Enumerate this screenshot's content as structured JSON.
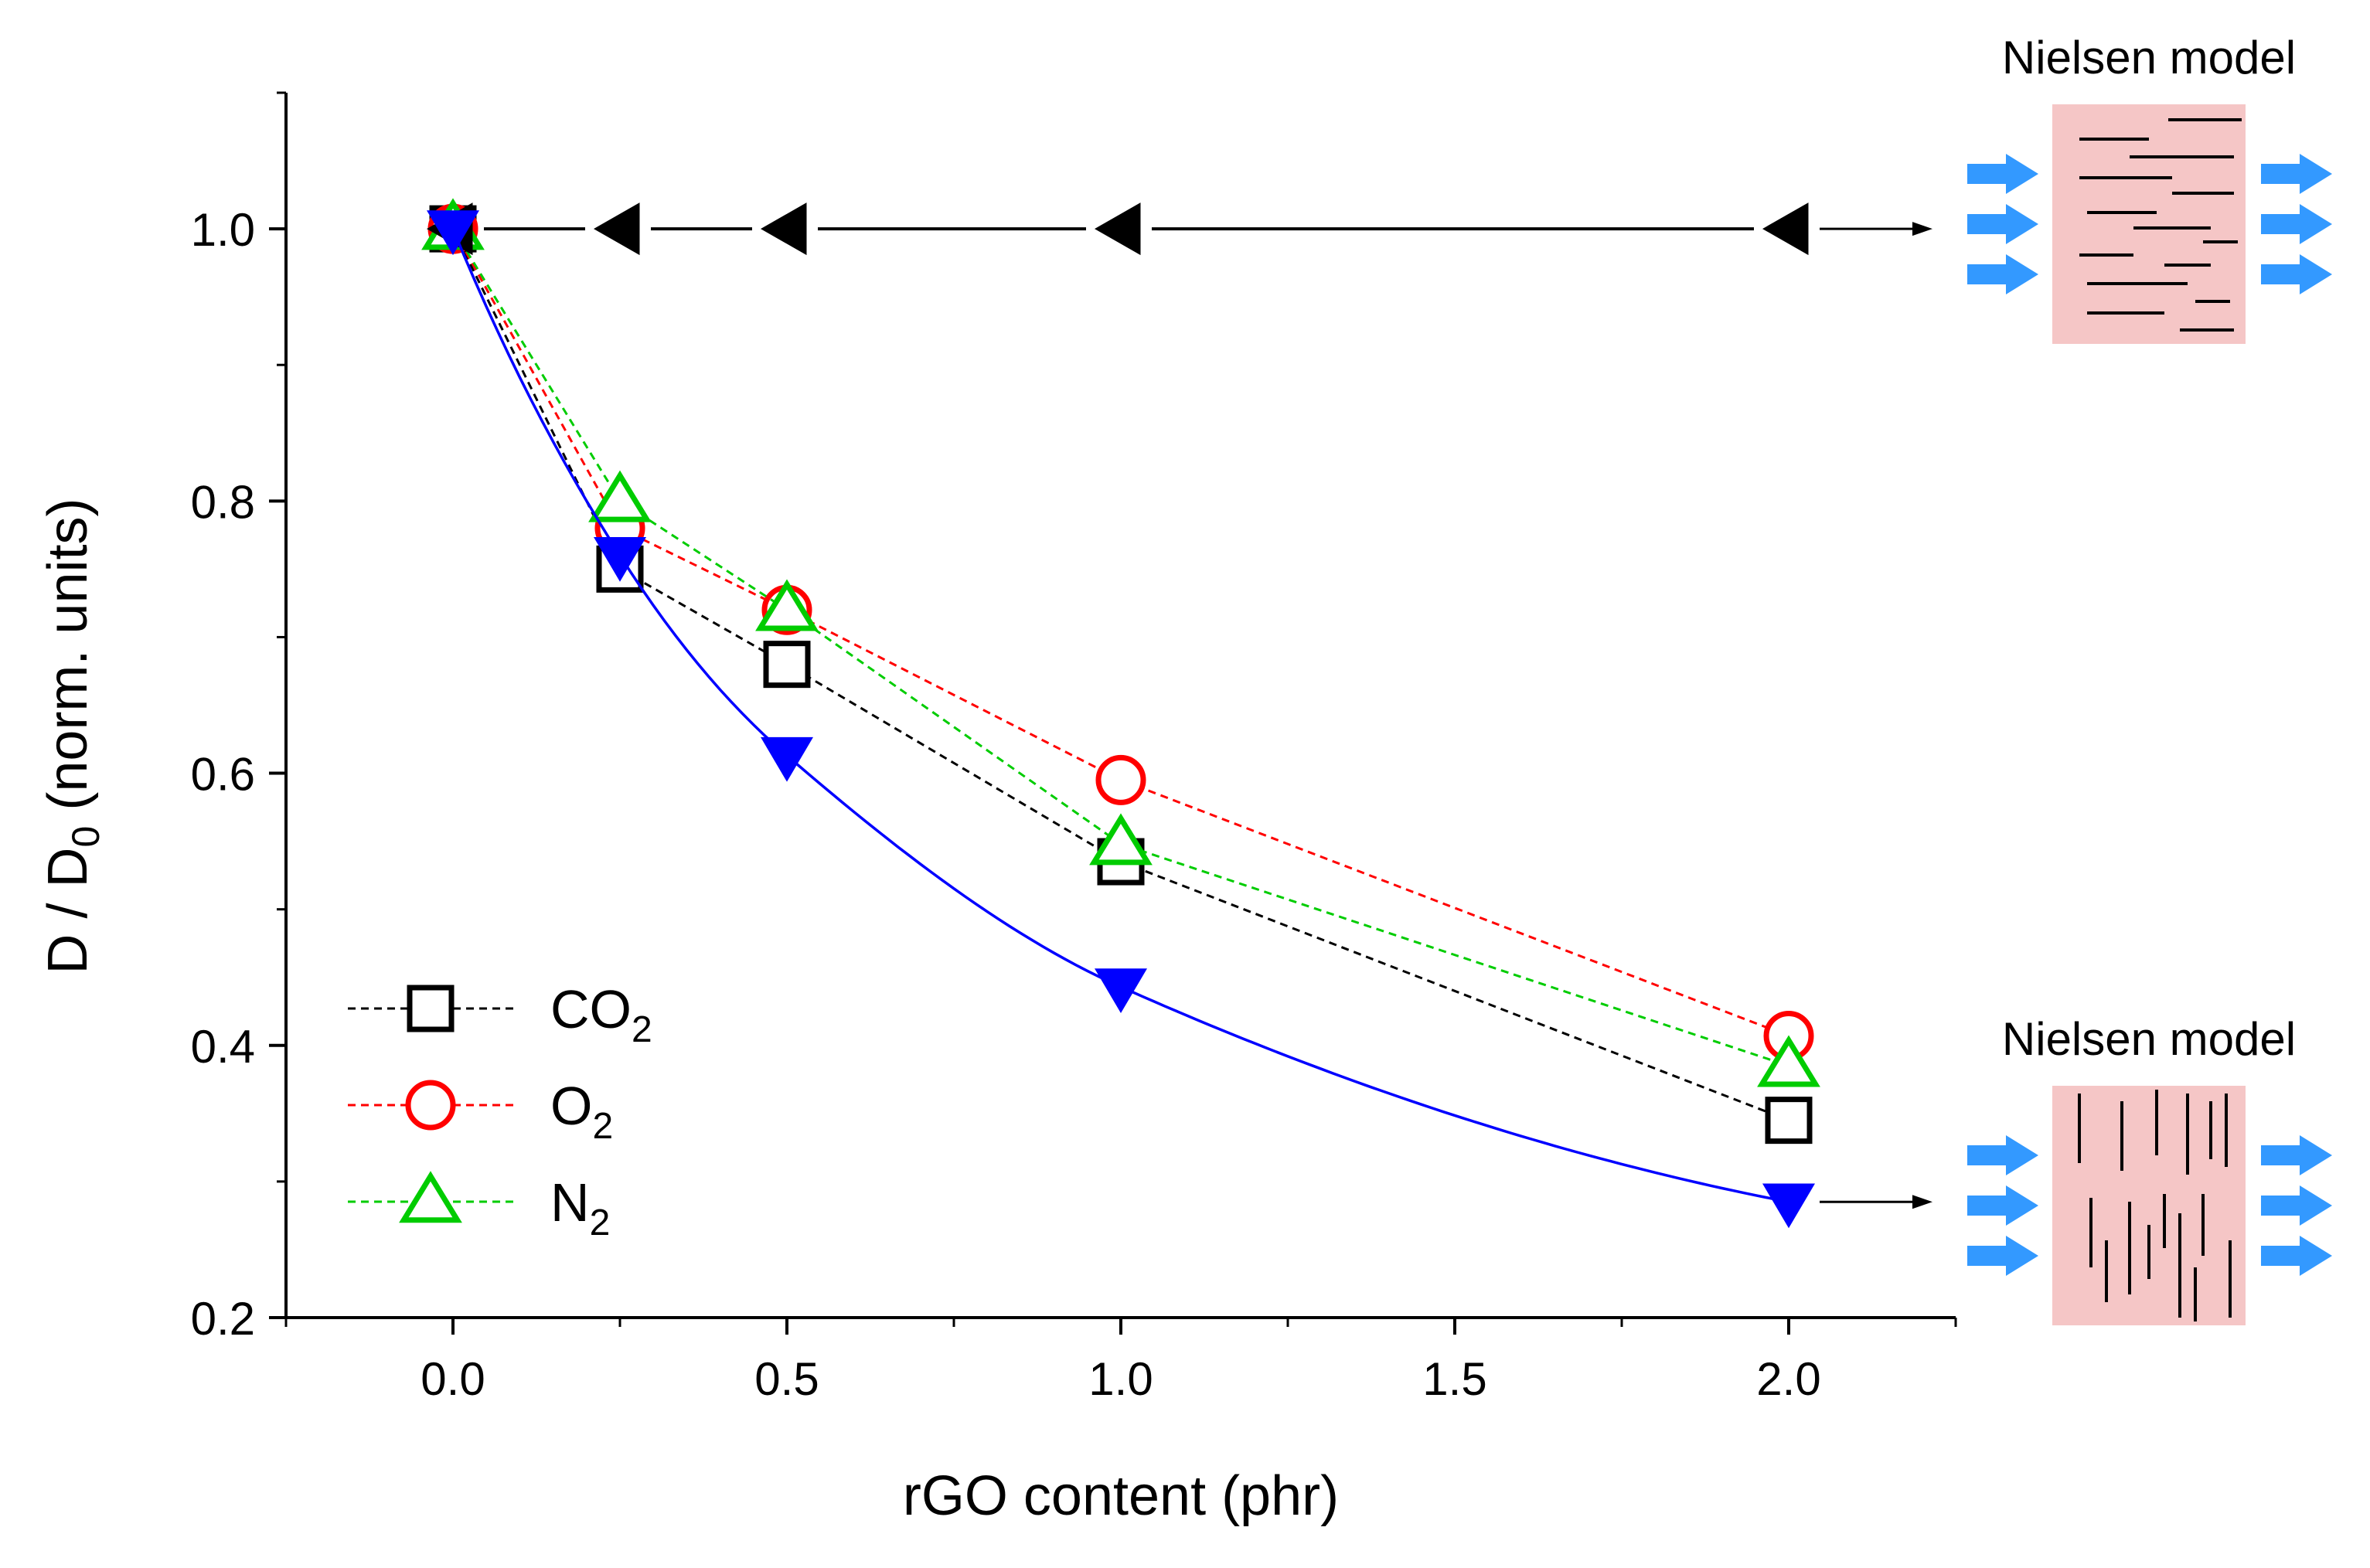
{
  "chart_data": {
    "type": "line",
    "xlabel": "rGO content (phr)",
    "ylabel_main": "D / D",
    "ylabel_sub": "0",
    "ylabel_tail": " (norm. units)",
    "xlim": [
      -0.25,
      2.25
    ],
    "ylim": [
      0.2,
      1.1
    ],
    "xticks": [
      0.0,
      0.5,
      1.0,
      1.5,
      2.0
    ],
    "xtick_labels": [
      "0.0",
      "0.5",
      "1.0",
      "1.5",
      "2.0"
    ],
    "yticks": [
      0.2,
      0.4,
      0.6,
      0.8,
      1.0
    ],
    "ytick_labels": [
      "0.2",
      "0.4",
      "0.6",
      "0.8",
      "1.0"
    ],
    "x": [
      0,
      0.25,
      0.5,
      1.0,
      2.0
    ],
    "series": [
      {
        "name": "CO",
        "sub": "2",
        "marker": "square",
        "color": "#000000",
        "line": "dashed",
        "values": [
          1.0,
          0.75,
          0.68,
          0.535,
          0.345
        ]
      },
      {
        "name": "O",
        "sub": "2",
        "marker": "circle",
        "color": "#ff0000",
        "line": "dashed",
        "values": [
          1.0,
          0.78,
          0.72,
          0.595,
          0.407
        ]
      },
      {
        "name": "N",
        "sub": "2",
        "marker": "triangle-up",
        "color": "#00cc00",
        "line": "dashed",
        "values": [
          1.0,
          0.8,
          0.72,
          0.548,
          0.385
        ]
      },
      {
        "name": "Nielsen model (parallel)",
        "marker": "triangle-left",
        "color": "#000000",
        "line": "solid",
        "legend": false,
        "values": [
          1.0,
          1.0,
          1.0,
          1.0,
          1.0
        ]
      },
      {
        "name": "Nielsen model (perpendicular)",
        "marker": "triangle-down",
        "color": "#0000ff",
        "line": "smooth",
        "legend": false,
        "values": [
          1.0,
          0.76,
          0.613,
          0.443,
          0.285
        ]
      }
    ],
    "legend_position": "bottom-left",
    "annotations": [
      {
        "text": "Nielsen model",
        "points_to_series": 3,
        "orientation": "horizontal"
      },
      {
        "text": "Nielsen model",
        "points_to_series": 4,
        "orientation": "vertical"
      }
    ],
    "colors": {
      "inset_fill": "#f5c6c6",
      "flow_arrow": "#3399ff"
    }
  }
}
